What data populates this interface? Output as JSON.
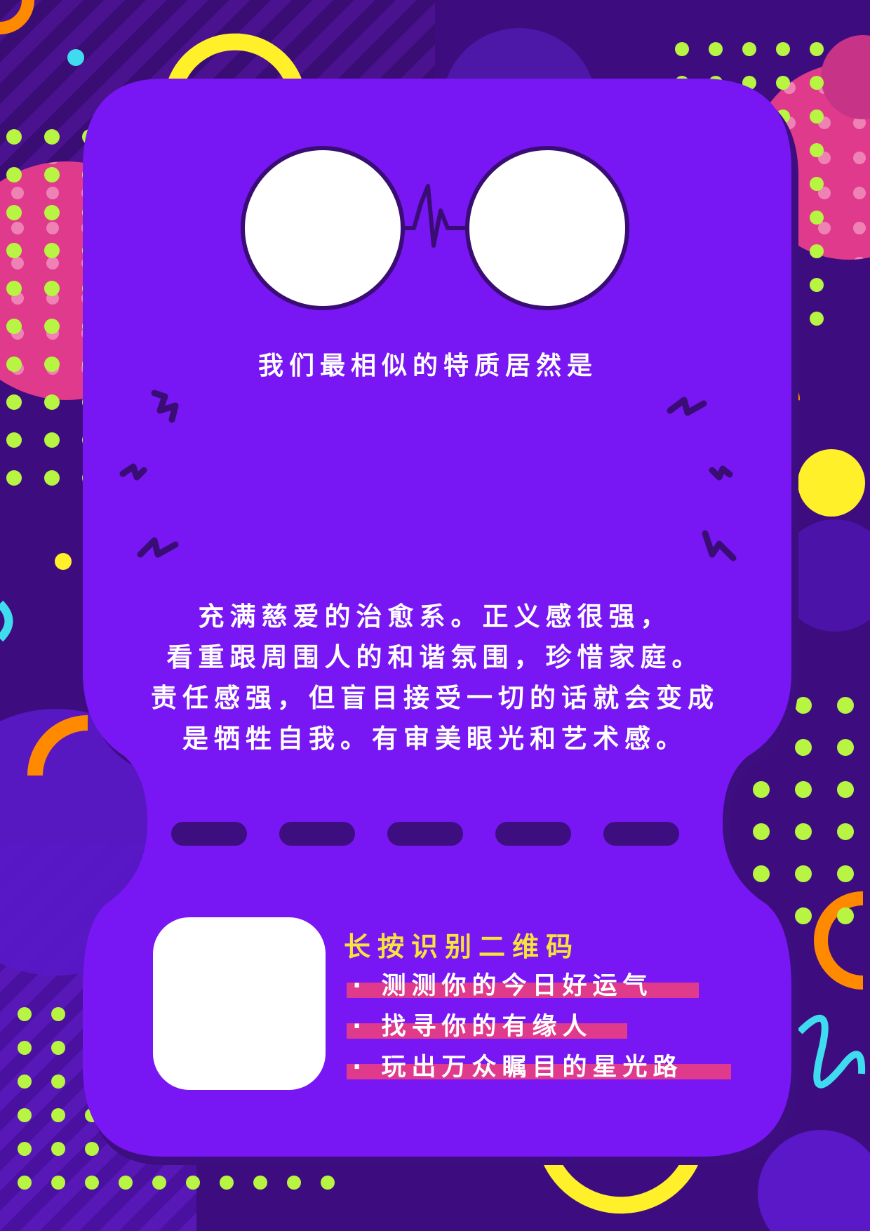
{
  "colors": {
    "background": "#3a0e7a",
    "card": "#7816f4",
    "card_shadow": "#3d0e80",
    "dot_green": "#b7f542",
    "pink": "#e03a8c",
    "yellow": "#fff02a",
    "orange": "#ff8a00",
    "cyan": "#3fdcf0",
    "highlight_text": "#f7e43a"
  },
  "header": {
    "subtitle": "我们最相似的特质居然是"
  },
  "result": {
    "lines": [
      "充满慈爱的治愈系。正义感很强，",
      "看重跟周围人的和谐氛围，珍惜家庭。",
      "责任感强，但盲目接受一切的话就会变成",
      "是牺牲自我。有审美眼光和艺术感。"
    ]
  },
  "qr_section": {
    "title": "长按识别二维码",
    "bullets": [
      "· 测测你的今日好运气",
      "· 找寻你的有缘人",
      "· 玩出万众瞩目的星光路"
    ]
  },
  "icons": {
    "glasses": "round-glasses-icon",
    "sparks": "zigzag-spark-icon",
    "qr": "qr-code-placeholder"
  }
}
